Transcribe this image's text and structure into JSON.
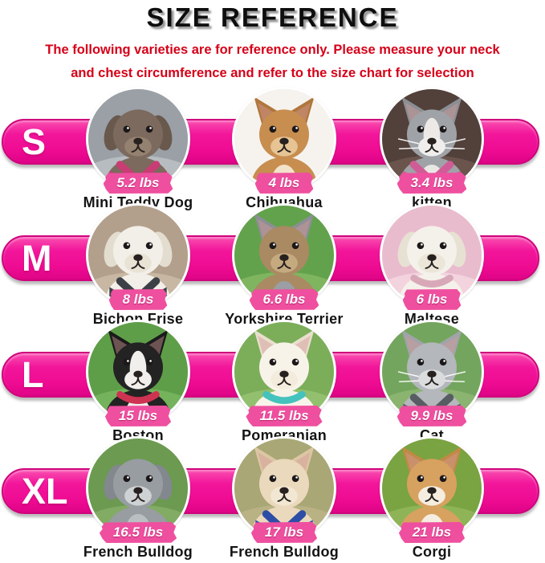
{
  "header": {
    "title": "SIZE REFERENCE",
    "note_line1": "The following varieties are for reference only. Please measure your neck",
    "note_line2": "and chest circumference and refer to the size chart for selection"
  },
  "colors": {
    "bar_pink": "#f2169b",
    "bar_border": "#cf037c",
    "badge_pink": "#ef4f9f",
    "note_red": "#d60018",
    "title_black": "#0e0e0e",
    "title_shadow_gray": "#949494"
  },
  "rows": [
    {
      "size": "S",
      "animals": [
        {
          "name": "Mini Teddy Dog",
          "weight": "5.2 lbs",
          "photo": {
            "kind": "dog",
            "bg": "#9aa0a6",
            "bg2": "#b7bcc1",
            "fur": "#7b6a5d",
            "ear": "#69594d",
            "muzzle": "#94816f",
            "harness": "#c73d74",
            "ears": "floppy"
          }
        },
        {
          "name": "Chihuahua",
          "weight": "4 lbs",
          "photo": {
            "kind": "dog",
            "bg": "#f6f3ef",
            "fur": "#c78e50",
            "ear": "#b0763b",
            "muzzle": "#e6c494",
            "chest": "#f2e3cb",
            "ears": "pointy"
          }
        },
        {
          "name": "kitten",
          "weight": "3.4 lbs",
          "photo": {
            "kind": "cat",
            "bg": "#52403a",
            "bg2": "#6a544c",
            "fur": "#9fa3a7",
            "ear": "#8b8f94",
            "muzzle": "#efeeec",
            "chest": "#e9e7e4",
            "blaze": "#ece9e6",
            "harness": "#d05c97",
            "ears": "pointy",
            "whiskers": true
          }
        }
      ]
    },
    {
      "size": "M",
      "animals": [
        {
          "name": "Bichon Frise",
          "weight": "8 lbs",
          "photo": {
            "kind": "dog",
            "bg": "#b3a08c",
            "bg2": "#c8b7a2",
            "fur": "#f2efe8",
            "ear": "#e3ddd0",
            "muzzle": "#e9e3d6",
            "harness": "#3c4046",
            "ears": "floppy"
          }
        },
        {
          "name": "Yorkshire Terrier",
          "weight": "6.6 lbs",
          "photo": {
            "kind": "dog",
            "bg": "#63a24c",
            "bg2": "#7fb55f",
            "fur": "#a98a63",
            "ear": "#8c8f94",
            "muzzle": "#c5aa80",
            "chest": "#9b9ea3",
            "ears": "pointy"
          }
        },
        {
          "name": "Maltese",
          "weight": "6 lbs",
          "photo": {
            "kind": "dog",
            "bg": "#e9bccd",
            "bg2": "#f2d3de",
            "fur": "#f4f1ea",
            "ear": "#e7e1d4",
            "muzzle": "#ece6d9",
            "collar": "#d8a8b8",
            "ears": "floppy"
          }
        }
      ]
    },
    {
      "size": "L",
      "animals": [
        {
          "name": "Boston",
          "weight": "15 lbs",
          "photo": {
            "kind": "dog",
            "bg": "#5f9e49",
            "bg2": "#74b35b",
            "fur": "#232323",
            "ear": "#1a1a1a",
            "muzzle": "#f1efec",
            "chest": "#f1efec",
            "blaze": "#f1efec",
            "collar": "#cf3352",
            "ears": "pointy"
          }
        },
        {
          "name": "Pomeranian",
          "weight": "11.5 lbs",
          "photo": {
            "kind": "dog",
            "bg": "#7cae5a",
            "bg2": "#92c06e",
            "fur": "#f8f3e9",
            "ear": "#e8dfcc",
            "muzzle": "#f3ecdd",
            "collar": "#44c2bd",
            "ears": "pointy"
          }
        },
        {
          "name": "Cat",
          "weight": "9.9 lbs",
          "photo": {
            "kind": "cat",
            "bg": "#74a55e",
            "bg2": "#8ab470",
            "fur": "#b4b7bb",
            "ear": "#a0a4a8",
            "muzzle": "#dadcde",
            "harness": "#585d63",
            "ears": "pointy",
            "whiskers": true
          }
        }
      ]
    },
    {
      "size": "XL",
      "animals": [
        {
          "name": "French Bulldog",
          "weight": "16.5 lbs",
          "photo": {
            "kind": "dog",
            "bg": "#6b9a50",
            "bg2": "#82ab63",
            "fur": "#979da1",
            "ear": "#82888d",
            "muzzle": "#cfd2d4",
            "chest": "#babfc2",
            "ears": "floppy"
          }
        },
        {
          "name": "French Bulldog",
          "weight": "17 lbs",
          "photo": {
            "kind": "dog",
            "bg": "#a9a775",
            "bg2": "#b9b285",
            "fur": "#ead9bc",
            "ear": "#dcc7a4",
            "muzzle": "#f2e7d2",
            "harness": "#2e4da6",
            "ears": "pointy"
          }
        },
        {
          "name": "Corgi",
          "weight": "21 lbs",
          "photo": {
            "kind": "dog",
            "bg": "#7aa342",
            "bg2": "#8fb457",
            "fur": "#d7a160",
            "ear": "#c08a46",
            "muzzle": "#f4ede0",
            "chest": "#f4ede0",
            "ears": "pointy"
          }
        }
      ]
    }
  ]
}
